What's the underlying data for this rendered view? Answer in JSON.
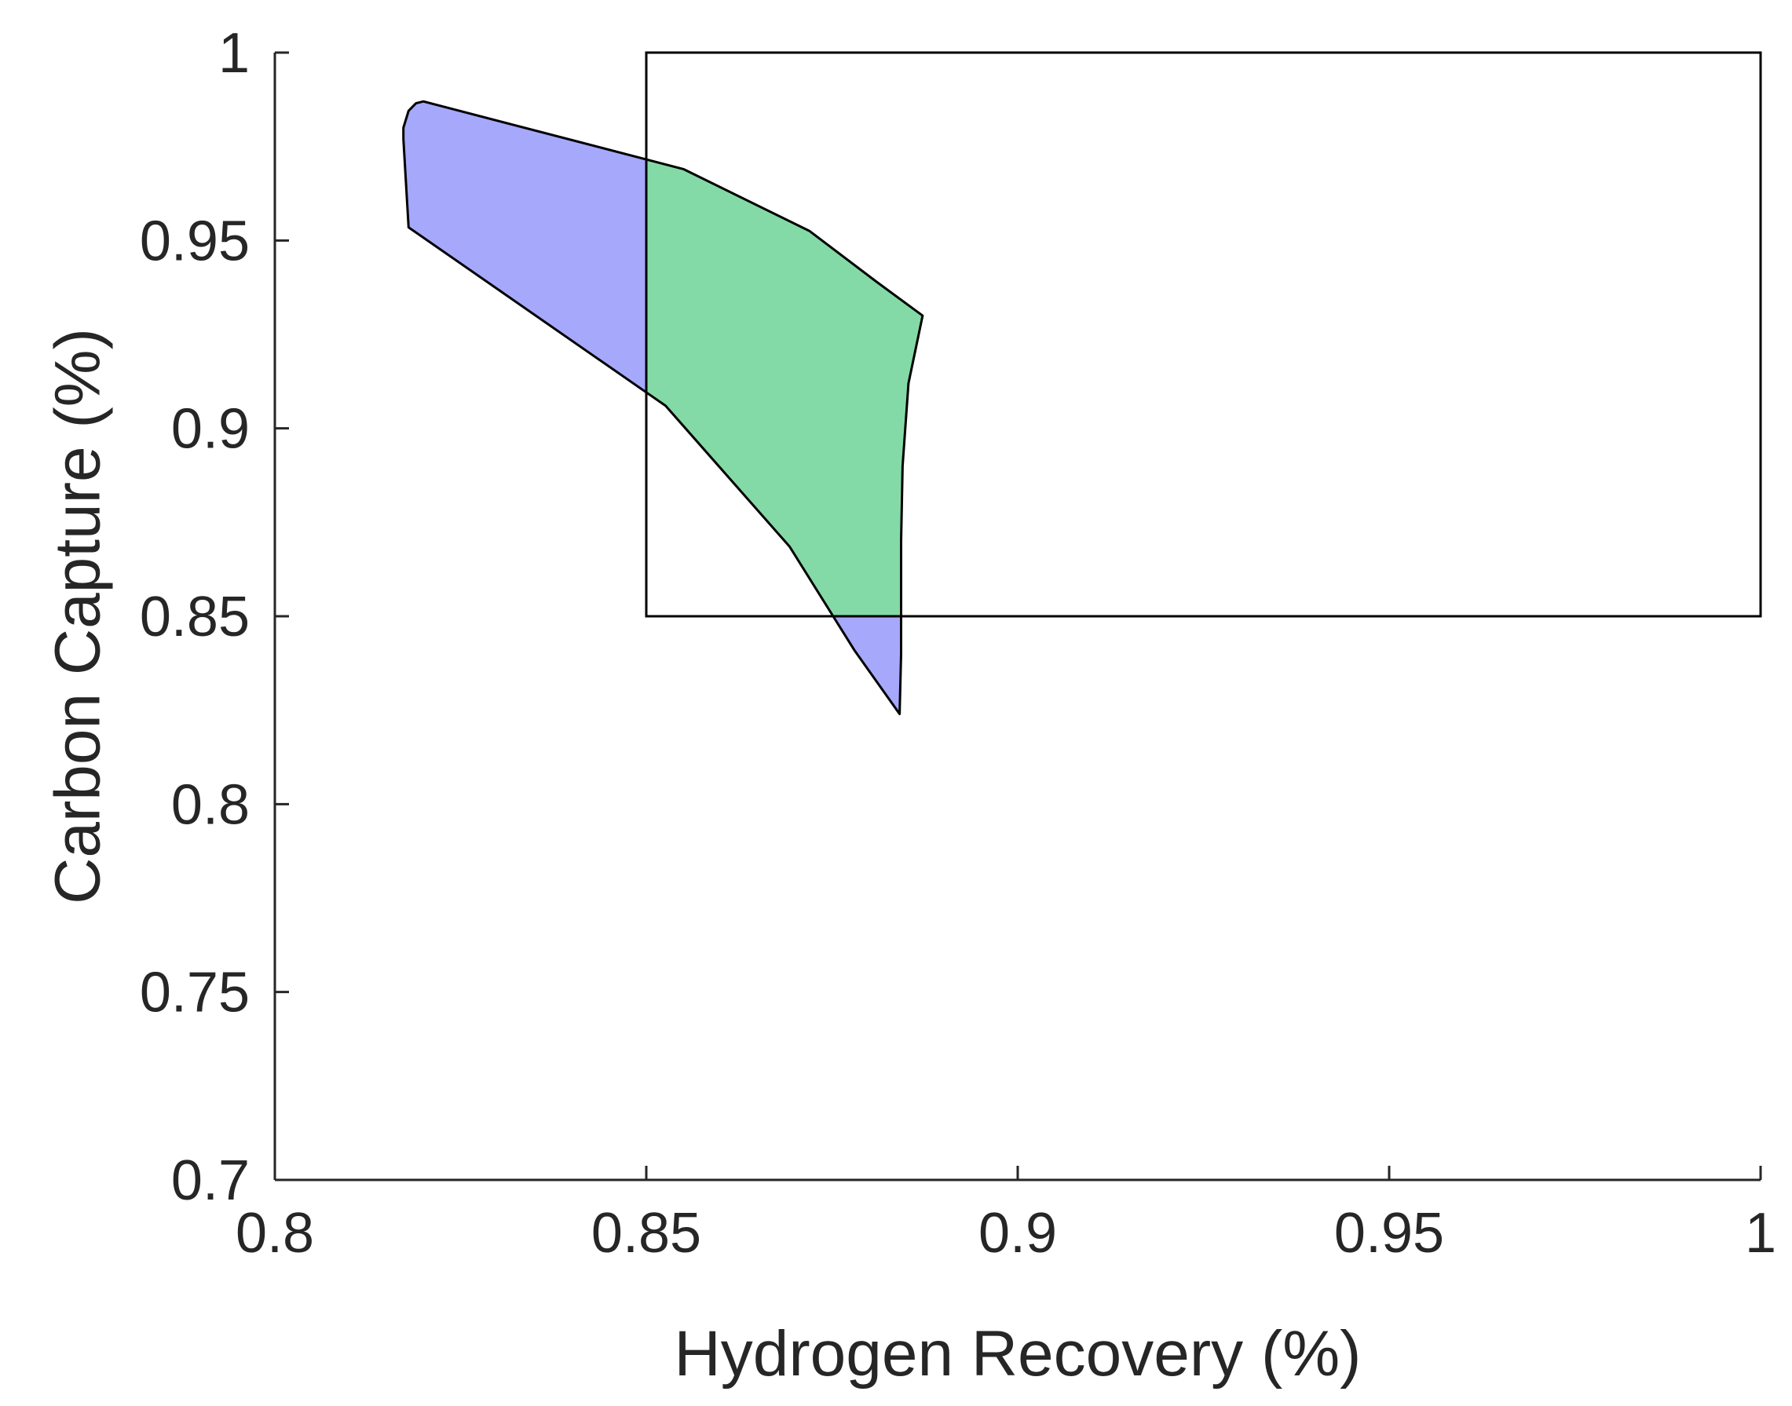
{
  "chart_data": {
    "type": "area",
    "xlabel": "Hydrogen Recovery (%)",
    "ylabel": "Carbon Capture (%)",
    "xlim": [
      0.8,
      1.0
    ],
    "ylim": [
      0.7,
      1.0
    ],
    "xticks": [
      0.8,
      0.85,
      0.9,
      0.95,
      1.0
    ],
    "yticks": [
      0.7,
      0.75,
      0.8,
      0.85,
      0.9,
      0.95,
      1.0
    ],
    "xtick_labels": [
      "0.8",
      "0.85",
      "0.9",
      "0.95",
      "1"
    ],
    "ytick_labels": [
      "0.7",
      "0.75",
      "0.8",
      "0.85",
      "0.9",
      "0.95",
      "1"
    ],
    "grid": false,
    "target_region": {
      "x_range": [
        0.85,
        1.0
      ],
      "y_range": [
        0.85,
        1.0
      ]
    },
    "feasible_region": [
      [
        0.82,
        0.987
      ],
      [
        0.819,
        0.9865
      ],
      [
        0.818,
        0.9845
      ],
      [
        0.8173,
        0.98
      ],
      [
        0.8173,
        0.977
      ],
      [
        0.818,
        0.9535
      ],
      [
        0.8526,
        0.906
      ],
      [
        0.8693,
        0.8685
      ],
      [
        0.878,
        0.841
      ],
      [
        0.8841,
        0.824
      ],
      [
        0.8843,
        0.84
      ],
      [
        0.8843,
        0.87
      ],
      [
        0.8845,
        0.89
      ],
      [
        0.8853,
        0.912
      ],
      [
        0.8872,
        0.93
      ],
      [
        0.881,
        0.939
      ],
      [
        0.872,
        0.9525
      ],
      [
        0.855,
        0.969
      ]
    ],
    "colors": {
      "outside_target": "#a6a8fc",
      "inside_target": "#84daa6",
      "outline": "#000000"
    }
  }
}
